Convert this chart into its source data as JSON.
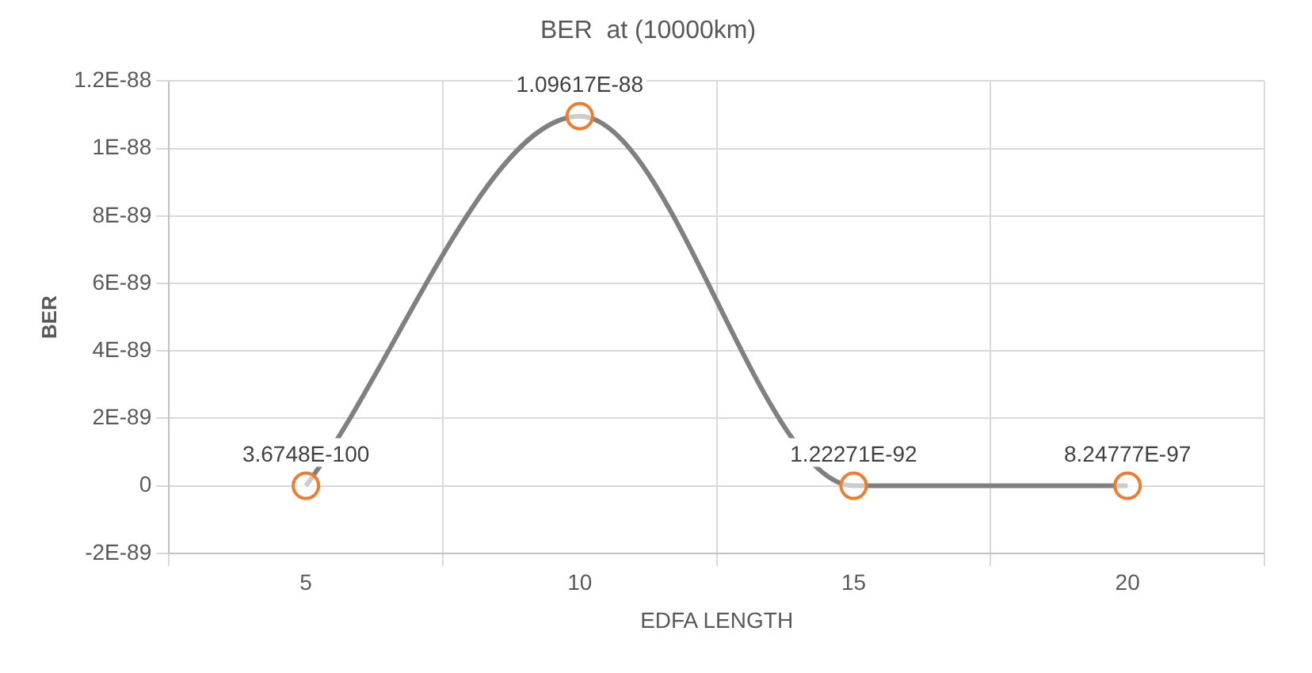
{
  "chart_data": {
    "type": "line",
    "title": "BER  at (10000km)",
    "xlabel": "EDFA LENGTH",
    "ylabel": "BER",
    "categories": [
      "5",
      "10",
      "15",
      "20"
    ],
    "series": [
      {
        "color": "#808080",
        "colors": [
          "#ed7d31",
          "#ed7d31",
          "#ed7d31",
          "#ed7d31"
        ],
        "values": [
          3.6748e-100,
          1.09617e-88,
          1.22271e-92,
          8.24777e-97
        ],
        "value_labels": [
          "3.6748E-100",
          "1.09617E-88",
          "1.22271E-92",
          "8.24777E-97"
        ]
      }
    ],
    "ylim": [
      -2e-89,
      1.2e-88
    ],
    "yticks": [
      {
        "value": -2e-89,
        "label": "-2E-89"
      },
      0,
      {
        "value": 2e-89,
        "label": "2E-89"
      },
      {
        "value": 4e-89,
        "label": "4E-89"
      },
      {
        "value": 6e-89,
        "label": "6E-89"
      },
      {
        "value": 8e-89,
        "label": "8E-89"
      },
      {
        "value": 1e-88,
        "label": "1E-88"
      },
      {
        "value": 1.2e-88,
        "label": "1.2E-88"
      }
    ],
    "grid": true,
    "legend": false,
    "marker": "circle",
    "line_style": "solid"
  }
}
